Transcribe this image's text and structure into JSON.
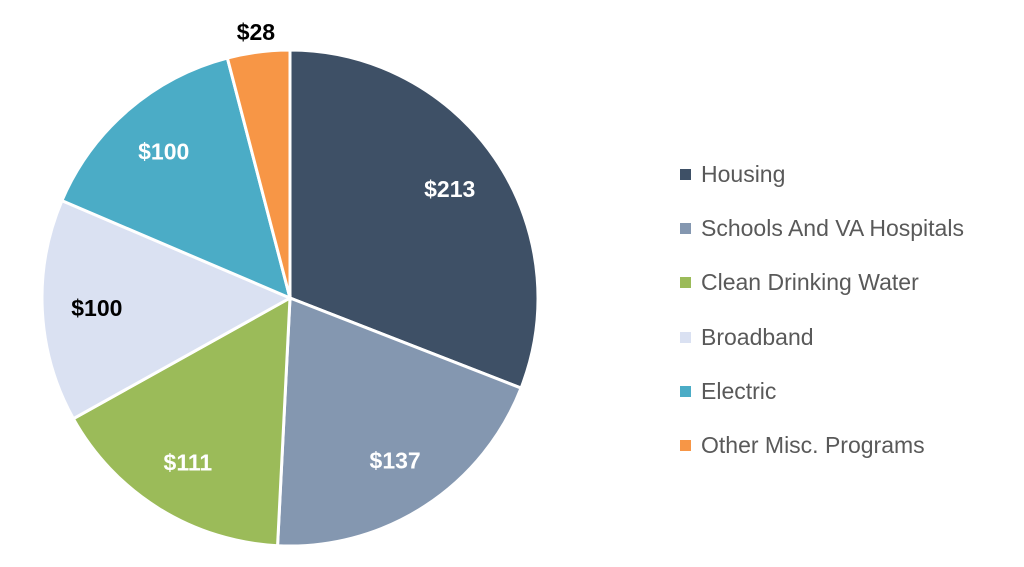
{
  "chart_data": {
    "type": "pie",
    "title": "",
    "categories": [
      "Housing",
      "Schools And VA Hospitals",
      "Clean Drinking Water",
      "Broadband",
      "Electric",
      "Other Misc. Programs"
    ],
    "values": [
      213,
      137,
      111,
      100,
      100,
      28
    ],
    "data_labels": [
      "$213",
      "$137",
      "$111",
      "$100",
      "$100",
      "$28"
    ],
    "colors": [
      "#3e5066",
      "#8497b0",
      "#9bbb59",
      "#dae1f2",
      "#4bacc6",
      "#f79646"
    ],
    "label_colors": [
      "#ffffff",
      "#ffffff",
      "#ffffff",
      "#000000",
      "#ffffff",
      "#000000"
    ],
    "legend_position": "right",
    "start_angle": "top, clockwise"
  }
}
